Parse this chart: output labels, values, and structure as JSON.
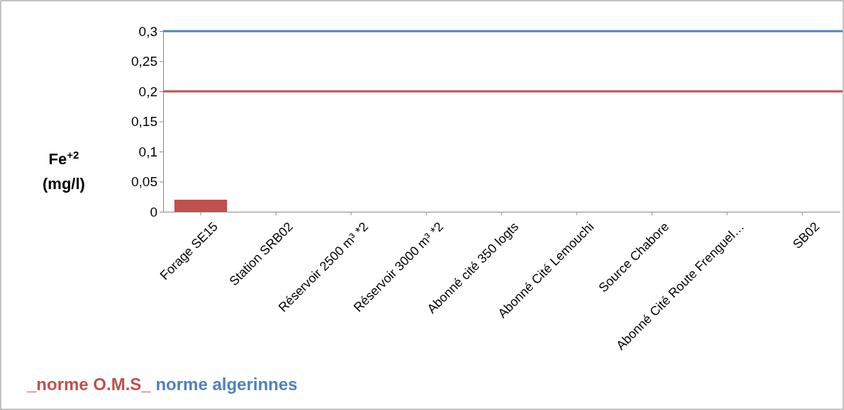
{
  "chart_data": {
    "type": "bar",
    "ylabel": "Fe$^{+2}$\n(mg/l)",
    "categories": [
      "Forage SE15",
      "Station SRB02",
      "Réservoir 2500 m³ *2",
      "Réservoir 3000 m³ *2",
      "Abonné cité 350 logts",
      "Abonné Cité Lemouchi",
      "Source Chabore",
      "Abonné Cité Route Frenguel…",
      "SB02"
    ],
    "values": [
      0.02,
      0,
      0,
      0,
      0,
      0,
      0,
      0,
      0
    ],
    "color": "#c0504d",
    "ylim": [
      0,
      0.3
    ],
    "yticks": [
      {
        "value": 0,
        "label": "0"
      },
      {
        "value": 0.05,
        "label": "0,05"
      },
      {
        "value": 0.1,
        "label": "0,1"
      },
      {
        "value": 0.15,
        "label": "0,15"
      },
      {
        "value": 0.2,
        "label": "0,2"
      },
      {
        "value": 0.25,
        "label": "0,25"
      },
      {
        "value": 0.3,
        "label": "0,3"
      }
    ],
    "ref_lines": [
      {
        "axis": "y",
        "value": 0.2,
        "label": "_norme O.M.S_",
        "color": "#c0504d"
      },
      {
        "axis": "y",
        "value": 0.3,
        "label": "norme algerinnes",
        "color": "#4f81bd"
      }
    ],
    "grid": false
  }
}
